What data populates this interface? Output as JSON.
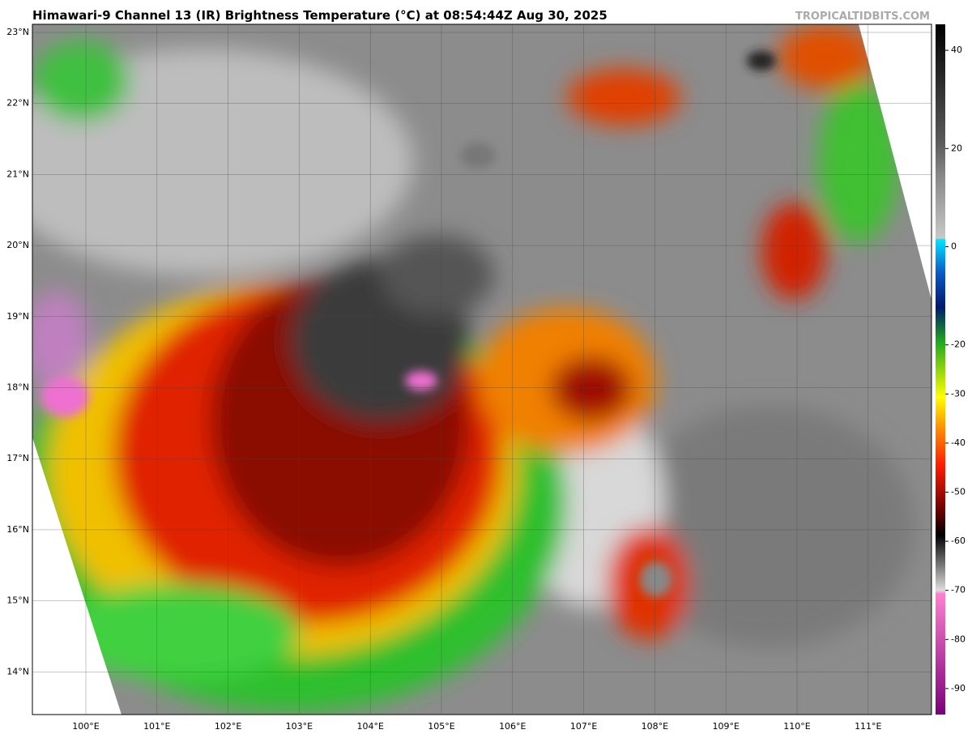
{
  "header": {
    "title": "Himawari-9 Channel 13 (IR) Brightness Temperature (°C) at 08:54:44Z Aug 30, 2025",
    "credit": "TROPICALTIDBITS.COM"
  },
  "map": {
    "lat_labels": [
      "23°N",
      "22°N",
      "21°N",
      "20°N",
      "19°N",
      "18°N",
      "17°N",
      "16°N",
      "15°N",
      "14°N"
    ],
    "lon_labels": [
      "100°E",
      "101°E",
      "102°E",
      "103°E",
      "104°E",
      "105°E",
      "106°E",
      "107°E",
      "108°E",
      "109°E",
      "110°E",
      "111°E"
    ]
  },
  "colorbar": {
    "lim": [
      -95.3,
      45.3
    ],
    "ticks": [
      40,
      20,
      0,
      -20,
      -30,
      -40,
      -50,
      -60,
      -70,
      -80,
      -90
    ]
  }
}
